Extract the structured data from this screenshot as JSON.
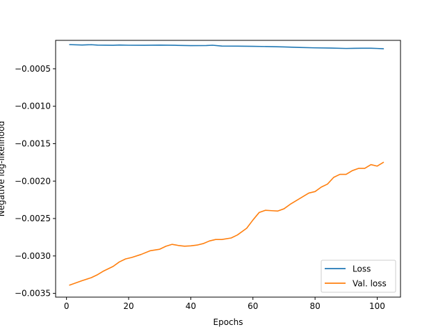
{
  "chart_data": {
    "type": "line",
    "title": "",
    "xlabel": "Epochs",
    "ylabel": "Negative log-likelihood",
    "xlim": [
      -3.5,
      107.5
    ],
    "ylim": [
      -0.00355,
      -0.00012
    ],
    "xticks": [
      0,
      20,
      40,
      60,
      80,
      100
    ],
    "yticks": [
      -0.0035,
      -0.003,
      -0.0025,
      -0.002,
      -0.0015,
      -0.001,
      -0.0005
    ],
    "ytick_labels": [
      "−0.0035",
      "−0.0030",
      "−0.0025",
      "−0.0020",
      "−0.0015",
      "−0.0010",
      "−0.0005"
    ],
    "legend": {
      "position": "lower-right"
    },
    "grid": false,
    "series": [
      {
        "name": "Loss",
        "color": "#1f77b4",
        "x": [
          1,
          5,
          8,
          10,
          15,
          17,
          20,
          25,
          30,
          35,
          40,
          45,
          47,
          50,
          55,
          60,
          65,
          70,
          75,
          80,
          85,
          90,
          95,
          98,
          100,
          102
        ],
        "y": [
          -0.000177,
          -0.000182,
          -0.000178,
          -0.000183,
          -0.000186,
          -0.000182,
          -0.000185,
          -0.000186,
          -0.000183,
          -0.000186,
          -0.00019,
          -0.000189,
          -0.000185,
          -0.000196,
          -0.000197,
          -0.0002,
          -0.000203,
          -0.000208,
          -0.000215,
          -0.00022,
          -0.000223,
          -0.000228,
          -0.000225,
          -0.000225,
          -0.000228,
          -0.000232
        ]
      },
      {
        "name": "Val. loss",
        "color": "#ff7f0e",
        "x": [
          1,
          5,
          8,
          10,
          12,
          15,
          17,
          19,
          21,
          24,
          27,
          30,
          32,
          34,
          36,
          38,
          40,
          42,
          44,
          46,
          48,
          50,
          53,
          55,
          58,
          60,
          62,
          64,
          66,
          68,
          70,
          72,
          74,
          76,
          78,
          80,
          82,
          84,
          86,
          88,
          90,
          92,
          94,
          96,
          98,
          100,
          102
        ],
        "y": [
          -0.00339,
          -0.00333,
          -0.00329,
          -0.00325,
          -0.0032,
          -0.00314,
          -0.00308,
          -0.00304,
          -0.00302,
          -0.00298,
          -0.00293,
          -0.00291,
          -0.00287,
          -0.002845,
          -0.00286,
          -0.00287,
          -0.002865,
          -0.002855,
          -0.002835,
          -0.0028,
          -0.00278,
          -0.00278,
          -0.00276,
          -0.00272,
          -0.00263,
          -0.00252,
          -0.00242,
          -0.00239,
          -0.002395,
          -0.0024,
          -0.00237,
          -0.00231,
          -0.00226,
          -0.00221,
          -0.00216,
          -0.00214,
          -0.00208,
          -0.00204,
          -0.00195,
          -0.00191,
          -0.00191,
          -0.00186,
          -0.00183,
          -0.00183,
          -0.00178,
          -0.0018,
          -0.00175
        ]
      }
    ]
  }
}
